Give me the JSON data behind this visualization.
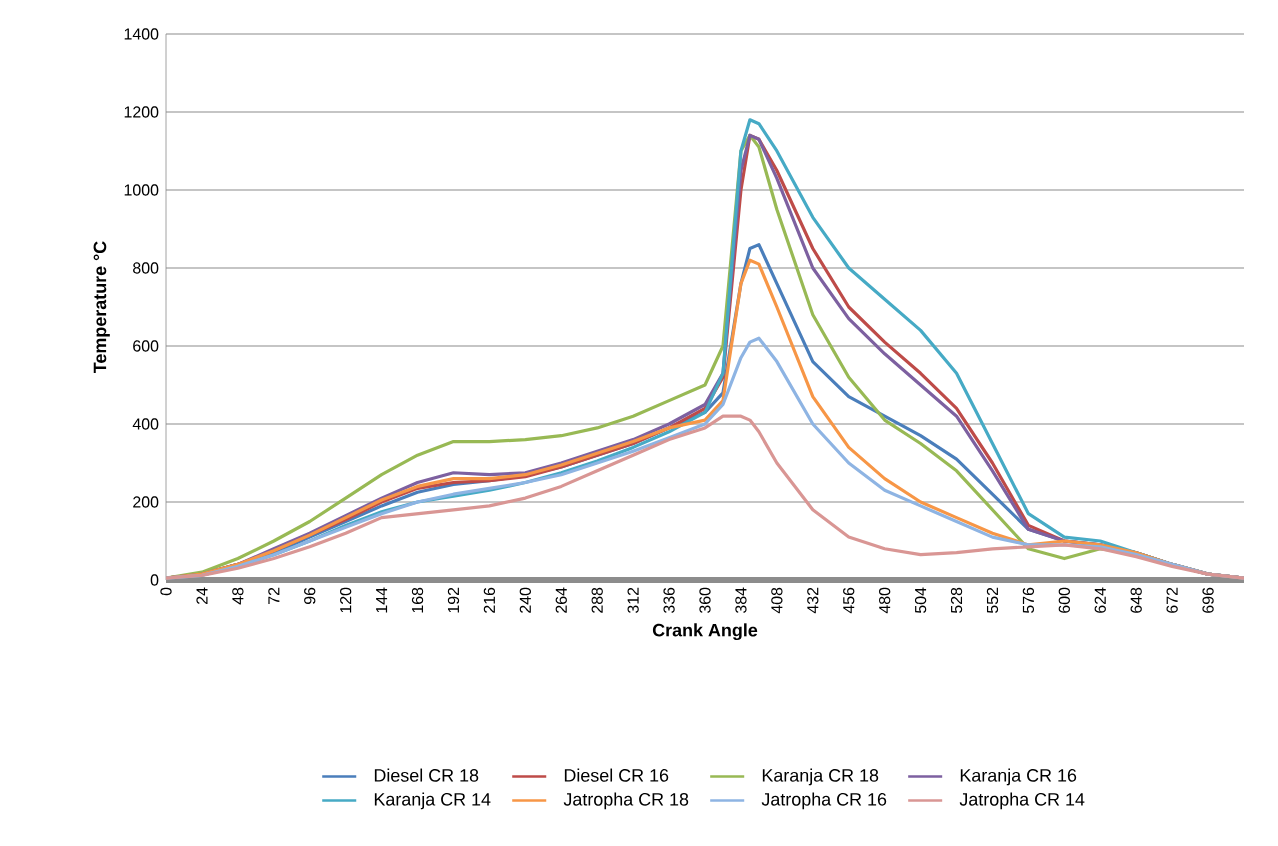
{
  "chart_data": {
    "type": "line",
    "xlabel": "Crank Angle",
    "ylabel": "Temperature °C",
    "x": [
      0,
      24,
      48,
      72,
      96,
      120,
      144,
      168,
      192,
      216,
      240,
      264,
      288,
      312,
      336,
      360,
      372,
      384,
      390,
      396,
      408,
      432,
      456,
      480,
      504,
      528,
      552,
      576,
      600,
      624,
      648,
      672,
      696,
      720
    ],
    "xlim": [
      0,
      720
    ],
    "xticks": [
      0,
      24,
      48,
      72,
      96,
      120,
      144,
      168,
      192,
      216,
      240,
      264,
      288,
      312,
      336,
      360,
      384,
      408,
      432,
      456,
      480,
      504,
      528,
      552,
      576,
      600,
      624,
      648,
      672,
      696
    ],
    "ylim": [
      0,
      1400
    ],
    "yticks": [
      0,
      200,
      400,
      600,
      800,
      1000,
      1200,
      1400
    ],
    "grid": "y",
    "legend": "bottom",
    "marker": "none",
    "series": [
      {
        "name": "Diesel CR 18",
        "color": "#4a7ebb",
        "values": [
          5,
          15,
          40,
          70,
          110,
          150,
          190,
          225,
          245,
          255,
          268,
          290,
          320,
          350,
          390,
          430,
          480,
          760,
          850,
          860,
          760,
          560,
          470,
          420,
          370,
          310,
          220,
          130,
          100,
          90,
          70,
          40,
          15,
          5
        ]
      },
      {
        "name": "Diesel CR 16",
        "color": "#be4b48",
        "values": [
          5,
          15,
          40,
          75,
          115,
          155,
          200,
          235,
          250,
          255,
          265,
          290,
          320,
          350,
          390,
          440,
          520,
          1000,
          1140,
          1130,
          1050,
          850,
          700,
          610,
          530,
          440,
          300,
          140,
          100,
          90,
          70,
          40,
          15,
          5
        ]
      },
      {
        "name": "Karanja CR 18",
        "color": "#98b954",
        "values": [
          5,
          20,
          55,
          100,
          150,
          210,
          270,
          320,
          355,
          355,
          360,
          370,
          390,
          420,
          460,
          500,
          600,
          1100,
          1140,
          1110,
          950,
          680,
          520,
          410,
          350,
          280,
          180,
          80,
          55,
          80,
          70,
          40,
          15,
          5
        ]
      },
      {
        "name": "Karanja CR 16",
        "color": "#7d60a0",
        "values": [
          5,
          15,
          40,
          80,
          120,
          165,
          210,
          250,
          275,
          270,
          275,
          300,
          330,
          360,
          400,
          450,
          530,
          1050,
          1140,
          1130,
          1030,
          800,
          670,
          580,
          500,
          420,
          280,
          130,
          100,
          90,
          70,
          40,
          15,
          5
        ]
      },
      {
        "name": "Karanja CR 14",
        "color": "#46aac5",
        "values": [
          5,
          12,
          35,
          65,
          100,
          140,
          175,
          200,
          215,
          230,
          250,
          275,
          305,
          340,
          380,
          430,
          530,
          1100,
          1180,
          1170,
          1100,
          930,
          800,
          720,
          640,
          530,
          350,
          170,
          110,
          100,
          70,
          40,
          15,
          5
        ]
      },
      {
        "name": "Jatropha CR 18",
        "color": "#f79646",
        "values": [
          5,
          15,
          40,
          75,
          115,
          160,
          205,
          240,
          260,
          260,
          270,
          295,
          325,
          355,
          390,
          410,
          460,
          760,
          820,
          810,
          700,
          470,
          340,
          260,
          200,
          160,
          120,
          90,
          100,
          90,
          70,
          40,
          15,
          5
        ]
      },
      {
        "name": "Jatropha CR 16",
        "color": "#8eb4e3",
        "values": [
          5,
          12,
          35,
          65,
          100,
          135,
          170,
          200,
          220,
          235,
          250,
          270,
          300,
          330,
          365,
          400,
          450,
          570,
          610,
          620,
          560,
          400,
          300,
          230,
          190,
          150,
          110,
          90,
          90,
          85,
          65,
          40,
          15,
          5
        ]
      },
      {
        "name": "Jatropha CR 14",
        "color": "#d99694",
        "values": [
          5,
          12,
          30,
          55,
          85,
          120,
          160,
          170,
          180,
          190,
          210,
          240,
          280,
          320,
          360,
          390,
          420,
          420,
          410,
          380,
          300,
          180,
          110,
          80,
          65,
          70,
          80,
          85,
          90,
          80,
          60,
          35,
          15,
          5
        ]
      }
    ]
  }
}
